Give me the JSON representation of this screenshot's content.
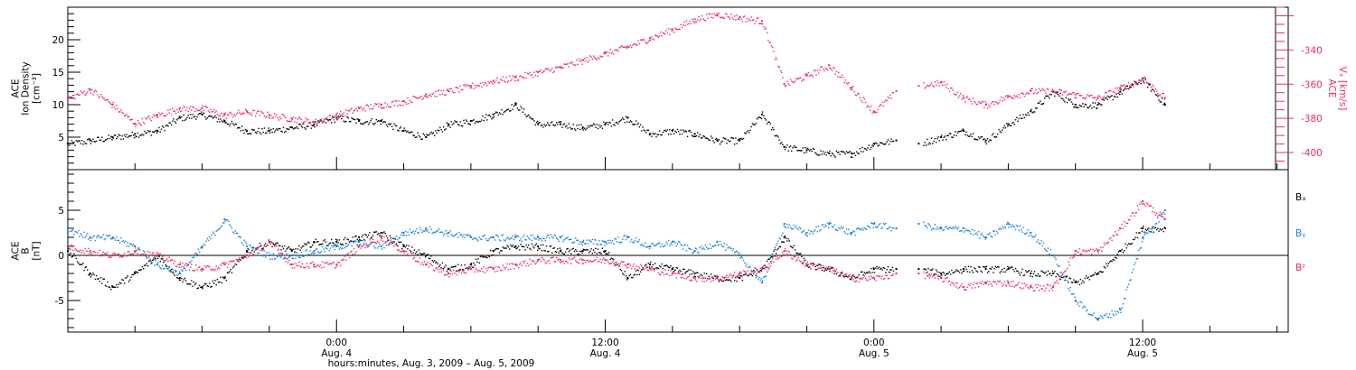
{
  "figure": {
    "xlabel": "hours:minutes, Aug.  3, 2009 – Aug.  5, 2009",
    "x_range_hours": [
      -12,
      42.5
    ],
    "x_ticks": [
      {
        "hour": 0,
        "time": "0:00",
        "date": "Aug. 4"
      },
      {
        "hour": 12,
        "time": "12:00",
        "date": "Aug. 4"
      },
      {
        "hour": 24,
        "time": "0:00",
        "date": "Aug. 5"
      },
      {
        "hour": 36,
        "time": "12:00",
        "date": "Aug. 5"
      }
    ],
    "colors": {
      "black": "#000000",
      "red": "#e8305f",
      "blue": "#1a7fd8"
    }
  },
  "chart_data": [
    {
      "type": "scatter",
      "title": "",
      "ylabel_left": [
        "ACE",
        "Ion Density",
        "[cm⁻³]"
      ],
      "ylabel_right": [
        "ACE",
        "Vₓ [km/s]"
      ],
      "ylim": [
        0,
        25
      ],
      "y_ticks": [
        5,
        10,
        15,
        20
      ],
      "y2lim": [
        -410,
        -315
      ],
      "y2_ticks": [
        -400,
        -380,
        -360,
        -340
      ],
      "series": [
        {
          "axis": "left",
          "color": "#000000",
          "x": [
            -12,
            -11,
            -10,
            -9,
            -8,
            -7,
            -6,
            -5,
            -4,
            -3,
            -2,
            -1,
            0,
            1,
            2,
            3,
            4,
            5,
            6,
            7,
            8,
            9,
            10,
            11,
            12,
            13,
            14,
            15,
            16,
            17,
            18,
            19,
            20,
            21,
            22,
            23,
            24,
            25,
            26,
            27,
            28,
            29,
            30,
            31,
            32,
            33,
            34,
            35,
            36,
            37
          ],
          "y": [
            4,
            4.5,
            5,
            5.5,
            6,
            8,
            8.5,
            7.5,
            6,
            6,
            6.5,
            7,
            8,
            7.5,
            7.5,
            6,
            5,
            7,
            7.5,
            8.5,
            10,
            7,
            7,
            6.5,
            7,
            8,
            5.5,
            6,
            5.5,
            4.5,
            4.5,
            8.5,
            3.5,
            3,
            2.5,
            2.5,
            4,
            4.5,
            4,
            5,
            6,
            4.5,
            7,
            9,
            12,
            10,
            10,
            12,
            14,
            10
          ]
        },
        {
          "axis": "right",
          "color": "#e8305f",
          "x": [
            -12,
            -11,
            -10,
            -9,
            -8,
            -7,
            -6,
            -5,
            -4,
            -3,
            -2,
            -1,
            0,
            1,
            2,
            3,
            4,
            5,
            6,
            7,
            8,
            9,
            10,
            11,
            12,
            13,
            14,
            15,
            16,
            17,
            18,
            19,
            20,
            21,
            22,
            23,
            24,
            25,
            26,
            27,
            28,
            29,
            30,
            31,
            32,
            33,
            34,
            35,
            36,
            37
          ],
          "y": [
            -368,
            -363,
            -372,
            -383,
            -378,
            -374,
            -374,
            -378,
            -376,
            -378,
            -380,
            -382,
            -378,
            -374,
            -372,
            -370,
            -366,
            -364,
            -361,
            -358,
            -356,
            -353,
            -350,
            -346,
            -342,
            -338,
            -333,
            -328,
            -322,
            -319,
            -321,
            -323,
            -360,
            -355,
            -349,
            -362,
            -376,
            -364,
            -361,
            -359,
            -368,
            -372,
            -367,
            -364,
            -364,
            -366,
            -368,
            -362,
            -357,
            -368
          ]
        }
      ]
    },
    {
      "type": "scatter",
      "title": "",
      "ylabel_left": [
        "ACE",
        "B",
        "[nT]"
      ],
      "ylim": [
        -8.5,
        9.5
      ],
      "y_ticks": [
        -5,
        0,
        5
      ],
      "zero_line": true,
      "legend": [
        "Bₓ",
        "Bᵧ",
        "Bᶻ"
      ],
      "legend_placement": "right",
      "series": [
        {
          "name": "Bₓ",
          "color": "#000000",
          "x": [
            -12,
            -11,
            -10,
            -9,
            -8,
            -7,
            -6,
            -5,
            -4,
            -3,
            -2,
            -1,
            0,
            1,
            2,
            3,
            4,
            5,
            6,
            7,
            8,
            9,
            10,
            11,
            12,
            13,
            14,
            15,
            16,
            17,
            18,
            19,
            20,
            21,
            22,
            23,
            24,
            25,
            26,
            27,
            28,
            29,
            30,
            31,
            32,
            33,
            34,
            35,
            36,
            37
          ],
          "y": [
            0.5,
            -2,
            -3.5,
            -2,
            0,
            -2.5,
            -3.5,
            -2.5,
            0.5,
            1.5,
            0.5,
            1.5,
            1.5,
            2,
            2.5,
            1,
            0,
            -1.5,
            -1,
            0.5,
            1,
            1,
            0.5,
            0.5,
            0.5,
            -2.5,
            -1,
            -1.5,
            -2,
            -2.5,
            -2.5,
            -1.5,
            2,
            -1,
            -1.5,
            -2.5,
            -1.5,
            -1.5,
            -1.5,
            -2,
            -1.5,
            -1.5,
            -1.5,
            -2,
            -2,
            -3,
            -2,
            0.5,
            3,
            3
          ]
        },
        {
          "name": "Bᵧ",
          "color": "#1a7fd8",
          "x": [
            -12,
            -11,
            -10,
            -9,
            -8,
            -7,
            -6,
            -5,
            -4,
            -3,
            -2,
            -1,
            0,
            1,
            2,
            3,
            4,
            5,
            6,
            7,
            8,
            9,
            10,
            11,
            12,
            13,
            14,
            15,
            16,
            17,
            18,
            19,
            20,
            21,
            22,
            23,
            24,
            25,
            26,
            27,
            28,
            29,
            30,
            31,
            32,
            33,
            34,
            35,
            36,
            37
          ],
          "y": [
            3,
            2,
            2,
            1,
            -1,
            -2,
            1,
            4,
            1,
            0,
            0,
            0.5,
            1,
            1.5,
            1,
            2.5,
            3,
            2.5,
            2,
            2,
            2,
            2,
            2,
            1.5,
            1.5,
            2,
            1,
            1.5,
            0.5,
            1.5,
            0,
            -3,
            3.5,
            2.5,
            3.5,
            2.5,
            3.5,
            3,
            3.5,
            3,
            3,
            2,
            3.5,
            2.5,
            0,
            -5,
            -7,
            -6,
            2,
            5
          ]
        },
        {
          "name": "Bᶻ",
          "color": "#e8305f",
          "x": [
            -12,
            -11,
            -10,
            -9,
            -8,
            -7,
            -6,
            -5,
            -4,
            -3,
            -2,
            -1,
            0,
            1,
            2,
            3,
            4,
            5,
            6,
            7,
            8,
            9,
            10,
            11,
            12,
            13,
            14,
            15,
            16,
            17,
            18,
            19,
            20,
            21,
            22,
            23,
            24,
            25,
            26,
            27,
            28,
            29,
            30,
            31,
            32,
            33,
            34,
            35,
            36,
            37
          ],
          "y": [
            1,
            0.5,
            0,
            0.5,
            0,
            -1,
            -1.5,
            -1,
            0,
            1.5,
            -1,
            -1,
            -1,
            1,
            2,
            0.5,
            -1,
            -2,
            -1.5,
            -1.5,
            -1,
            -0.5,
            -0.5,
            -0.5,
            -0.5,
            -1,
            -1.5,
            -2,
            -2.5,
            -2.5,
            -2,
            -1.5,
            0.5,
            -1,
            -1.5,
            -2.5,
            -2.5,
            -2,
            -2,
            -2.5,
            -3.5,
            -3,
            -3,
            -3.5,
            -3.5,
            0.5,
            0.5,
            3,
            6,
            4
          ]
        }
      ]
    }
  ]
}
